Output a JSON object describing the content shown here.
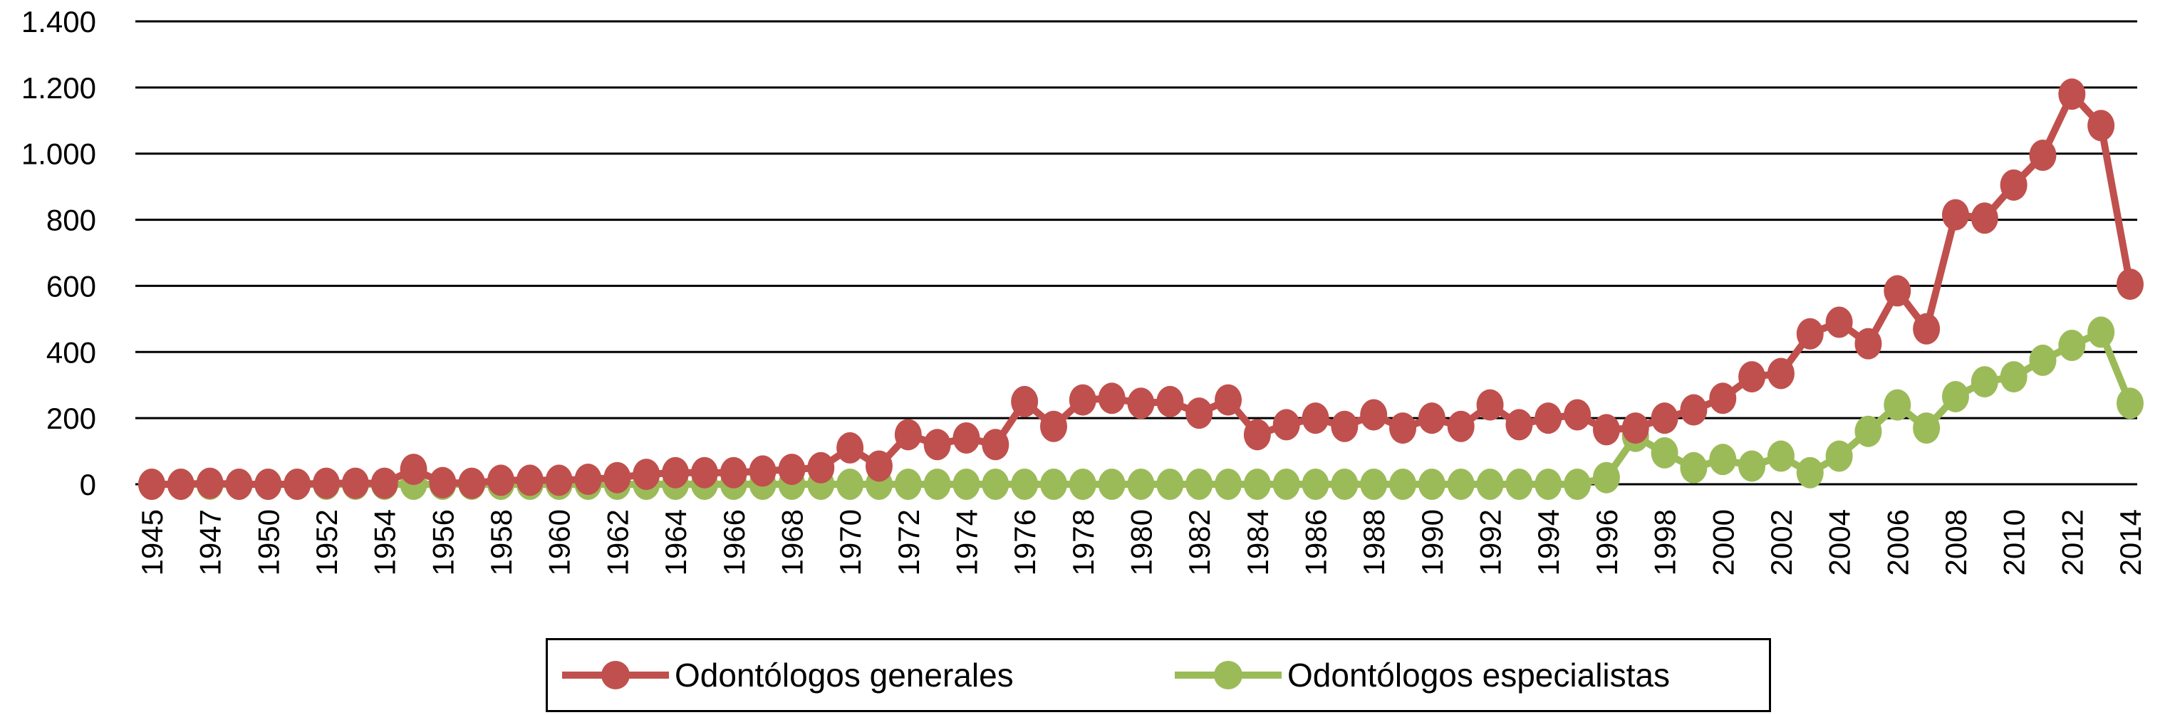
{
  "chart_data": {
    "type": "line",
    "title": "",
    "xlabel": "",
    "ylabel": "",
    "ylim": [
      0,
      1400
    ],
    "yticks": [
      0,
      200,
      400,
      600,
      800,
      1000,
      1200,
      1400
    ],
    "ytick_labels": [
      "0",
      "200",
      "400",
      "600",
      "800",
      "1.000",
      "1.200",
      "1.400"
    ],
    "grid": "horizontal",
    "legend_position": "bottom",
    "x": [
      1945,
      1946,
      1947,
      1949,
      1950,
      1951,
      1952,
      1953,
      1954,
      1955,
      1956,
      1957,
      1958,
      1959,
      1960,
      1961,
      1962,
      1963,
      1964,
      1965,
      1966,
      1967,
      1968,
      1969,
      1970,
      1971,
      1972,
      1973,
      1974,
      1975,
      1976,
      1977,
      1978,
      1979,
      1980,
      1981,
      1982,
      1983,
      1984,
      1985,
      1986,
      1987,
      1988,
      1989,
      1990,
      1991,
      1992,
      1993,
      1994,
      1995,
      1996,
      1997,
      1998,
      1999,
      2000,
      2001,
      2002,
      2003,
      2004,
      2005,
      2006,
      2007,
      2008,
      2009,
      2010,
      2011,
      2012,
      2013,
      2014
    ],
    "xtick_labels": [
      "1945",
      "1947",
      "1950",
      "1952",
      "1954",
      "1956",
      "1958",
      "1960",
      "1962",
      "1964",
      "1966",
      "1968",
      "1970",
      "1972",
      "1974",
      "1976",
      "1978",
      "1980",
      "1982",
      "1984",
      "1986",
      "1988",
      "1990",
      "1992",
      "1994",
      "1996",
      "1998",
      "2000",
      "2002",
      "2004",
      "2006",
      "2008",
      "2010",
      "2012",
      "2014"
    ],
    "series": [
      {
        "name": "Odontólogos generales",
        "color": "#C0504D",
        "values": [
          0,
          0,
          3,
          0,
          0,
          0,
          3,
          3,
          3,
          45,
          5,
          3,
          12,
          12,
          12,
          15,
          20,
          30,
          35,
          35,
          35,
          40,
          45,
          50,
          110,
          55,
          150,
          120,
          140,
          120,
          250,
          175,
          255,
          260,
          245,
          250,
          215,
          255,
          150,
          180,
          200,
          175,
          210,
          170,
          200,
          175,
          240,
          180,
          200,
          210,
          165,
          170,
          200,
          225,
          260,
          325,
          335,
          455,
          490,
          425,
          585,
          470,
          815,
          805,
          905,
          995,
          1180,
          1085,
          605
        ]
      },
      {
        "name": "Odontólogos especialistas",
        "color": "#9BBB59",
        "values": [
          0,
          0,
          0,
          0,
          0,
          0,
          0,
          0,
          0,
          0,
          0,
          0,
          0,
          0,
          0,
          0,
          0,
          0,
          0,
          0,
          0,
          0,
          0,
          0,
          0,
          0,
          0,
          0,
          0,
          0,
          0,
          0,
          0,
          0,
          0,
          0,
          0,
          0,
          0,
          0,
          0,
          0,
          0,
          0,
          0,
          0,
          0,
          0,
          0,
          0,
          20,
          145,
          95,
          50,
          75,
          55,
          85,
          35,
          85,
          160,
          240,
          170,
          265,
          310,
          325,
          375,
          420,
          460,
          245
        ]
      }
    ]
  }
}
